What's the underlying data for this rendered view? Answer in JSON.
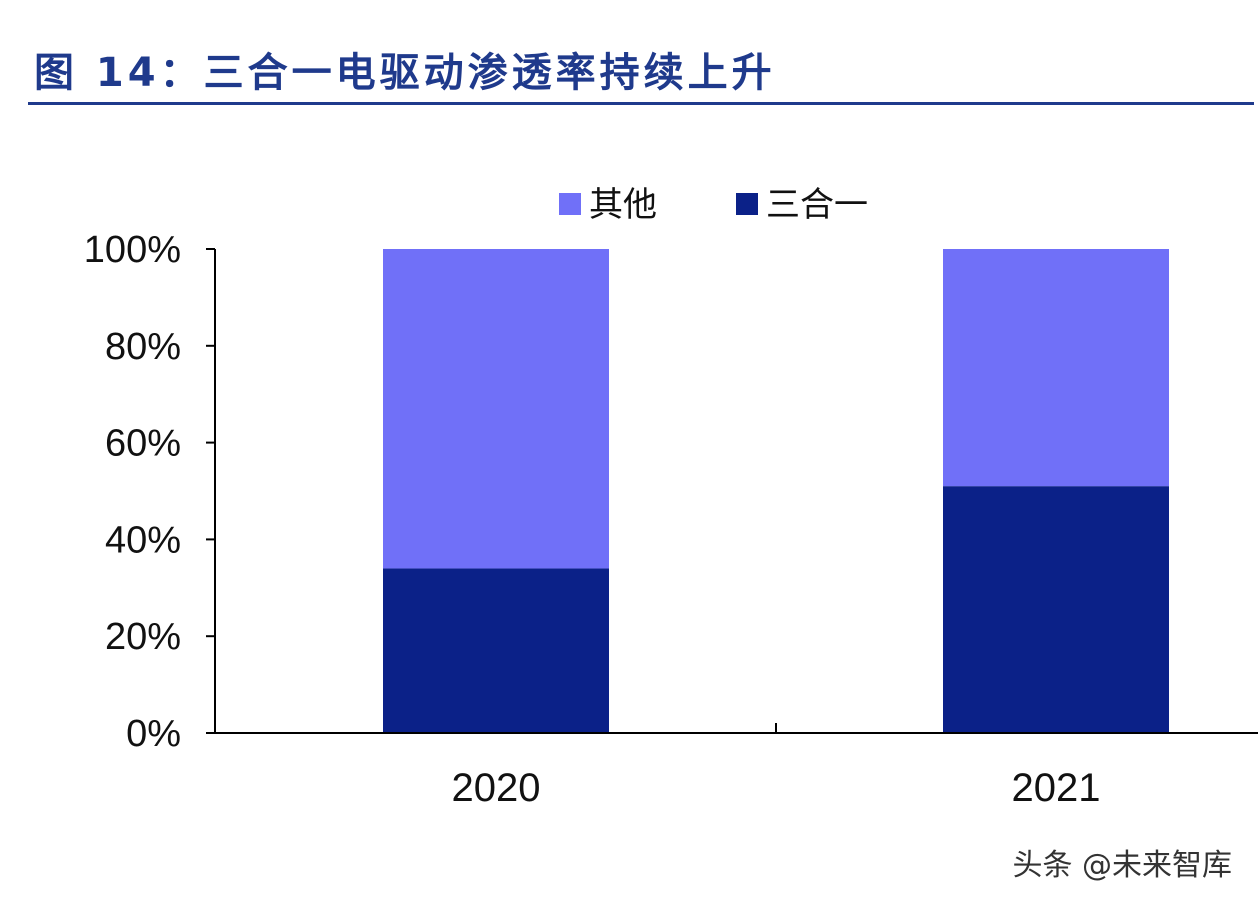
{
  "title": "图 14：三合一电驱动渗透率持续上升",
  "watermark": "头条 @未来智库",
  "colors": {
    "title": "#1f3a8c",
    "other": "#7070f8",
    "three_in_one": "#0b2188",
    "axis": "#000000",
    "text": "#111111"
  },
  "chart_data": {
    "type": "bar",
    "stacked": true,
    "categories": [
      "2020",
      "2021"
    ],
    "series": [
      {
        "name": "三合一",
        "values": [
          34,
          51
        ],
        "color": "#0b2188"
      },
      {
        "name": "其他",
        "values": [
          66,
          49
        ],
        "color": "#7070f8"
      }
    ],
    "legend": {
      "position": "top",
      "entries": [
        "其他",
        "三合一"
      ]
    },
    "ylim": [
      0,
      100
    ],
    "yticks": [
      "0%",
      "20%",
      "40%",
      "60%",
      "80%",
      "100%"
    ],
    "grid": false,
    "xlabel": "",
    "ylabel": ""
  }
}
